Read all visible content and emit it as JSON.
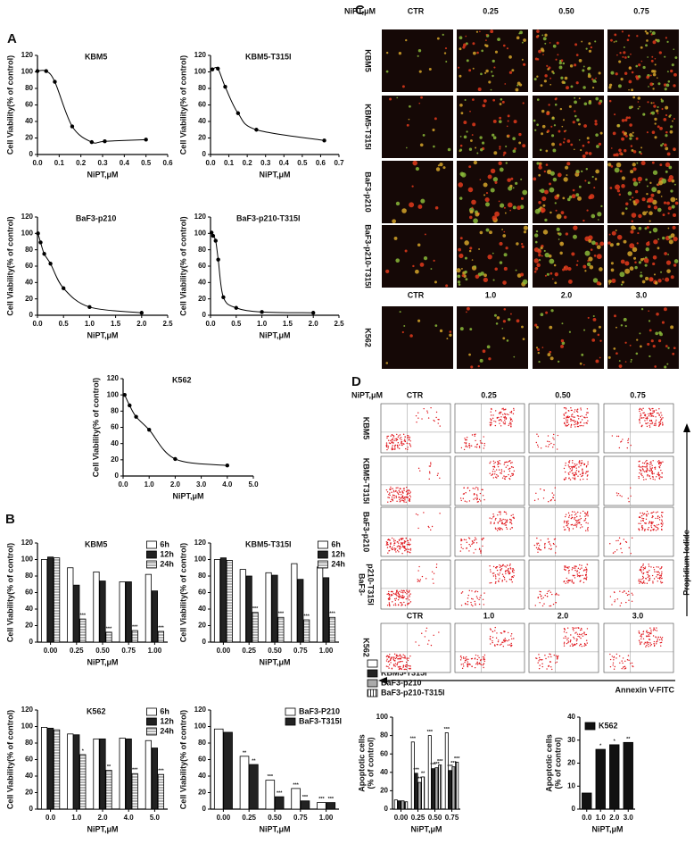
{
  "panel_labels": [
    "A",
    "B",
    "C",
    "D"
  ],
  "chart_data": [
    {
      "type": "scatter",
      "title": "KBM5",
      "x_label": "NiPT,μM",
      "y_label": "Cell Viability(% of control)",
      "color": "#000000",
      "fit_line": true,
      "x": [
        0.0,
        0.04,
        0.08,
        0.16,
        0.25,
        0.31,
        0.5
      ],
      "values": [
        101,
        101,
        88,
        34,
        15,
        16,
        18
      ],
      "xlim": [
        0,
        0.6
      ],
      "xticks": [
        {
          "value": 0,
          "label": "0.0"
        },
        {
          "value": 0.1,
          "label": "0.1"
        },
        {
          "value": 0.2,
          "label": "0.2"
        },
        {
          "value": 0.3,
          "label": "0.3"
        },
        {
          "value": 0.4,
          "label": "0.4"
        },
        {
          "value": 0.5,
          "label": "0.5"
        },
        {
          "value": 0.6,
          "label": "0.6"
        }
      ],
      "ylim": [
        0,
        120
      ],
      "yticks": [
        0,
        20,
        40,
        60,
        80,
        100,
        120
      ]
    },
    {
      "type": "scatter",
      "title": "KBM5-T315I",
      "x_label": "NiPT,μM",
      "y_label": "Cell Viability(% of control)",
      "color": "#000000",
      "fit_line": true,
      "x": [
        0.01,
        0.04,
        0.08,
        0.15,
        0.25,
        0.62
      ],
      "values": [
        103,
        104,
        82,
        50,
        30,
        17
      ],
      "xlim": [
        0,
        0.7
      ],
      "xticks": [
        {
          "value": 0,
          "label": "0.0"
        },
        {
          "value": 0.1,
          "label": "0.1"
        },
        {
          "value": 0.2,
          "label": "0.2"
        },
        {
          "value": 0.3,
          "label": "0.3"
        },
        {
          "value": 0.4,
          "label": "0.4"
        },
        {
          "value": 0.5,
          "label": "0.5"
        },
        {
          "value": 0.6,
          "label": "0.6"
        },
        {
          "value": 0.7,
          "label": "0.7"
        }
      ],
      "ylim": [
        0,
        120
      ],
      "yticks": [
        0,
        20,
        40,
        60,
        80,
        100,
        120
      ]
    },
    {
      "type": "scatter",
      "title": "BaF3-p210",
      "x_label": "NiPT,μM",
      "y_label": "Cell Viability(% of control)",
      "color": "#000000",
      "fit_line": true,
      "x": [
        0.01,
        0.06,
        0.13,
        0.25,
        0.5,
        1.0,
        2.0
      ],
      "values": [
        100,
        89,
        75,
        63,
        33,
        10,
        3
      ],
      "xlim": [
        0,
        2.5
      ],
      "xticks": [
        {
          "value": 0,
          "label": "0.0"
        },
        {
          "value": 0.5,
          "label": "0.5"
        },
        {
          "value": 1,
          "label": "1.0"
        },
        {
          "value": 1.5,
          "label": "1.5"
        },
        {
          "value": 2,
          "label": "2.0"
        },
        {
          "value": 2.5,
          "label": "2.5"
        }
      ],
      "ylim": [
        0,
        120
      ],
      "yticks": [
        0,
        20,
        40,
        60,
        80,
        100,
        120
      ]
    },
    {
      "type": "scatter",
      "title": "BaF3-p210-T315I",
      "x_label": "NiPT,μM",
      "y_label": "Cell Viability(% of control)",
      "color": "#000000",
      "fit_line": true,
      "x": [
        0.02,
        0.05,
        0.1,
        0.15,
        0.25,
        0.5,
        1.0,
        2.0
      ],
      "values": [
        101,
        97,
        91,
        68,
        22,
        9,
        4,
        3
      ],
      "xlim": [
        0,
        2.5
      ],
      "xticks": [
        {
          "value": 0,
          "label": "0.0"
        },
        {
          "value": 0.5,
          "label": "0.5"
        },
        {
          "value": 1,
          "label": "1.0"
        },
        {
          "value": 1.5,
          "label": "1.5"
        },
        {
          "value": 2,
          "label": "2.0"
        },
        {
          "value": 2.5,
          "label": "2.5"
        }
      ],
      "ylim": [
        0,
        120
      ],
      "yticks": [
        0,
        20,
        40,
        60,
        80,
        100,
        120
      ]
    },
    {
      "type": "scatter",
      "title": "K562",
      "x_label": "NiPT,μM",
      "y_label": "Cell Viability(% of control)",
      "color": "#000000",
      "fit_line": true,
      "x": [
        0.06,
        0.25,
        0.5,
        1.0,
        2.0,
        4.0
      ],
      "values": [
        100,
        87,
        73,
        57,
        21,
        13
      ],
      "xlim": [
        0,
        5
      ],
      "xticks": [
        {
          "value": 0,
          "label": "0.0"
        },
        {
          "value": 1,
          "label": "1.0"
        },
        {
          "value": 2,
          "label": "2.0"
        },
        {
          "value": 3,
          "label": "3.0"
        },
        {
          "value": 4,
          "label": "4.0"
        },
        {
          "value": 5,
          "label": "5.0"
        }
      ],
      "ylim": [
        0,
        120
      ],
      "yticks": [
        0,
        20,
        40,
        60,
        80,
        100,
        120
      ]
    },
    {
      "type": "bar",
      "title": "KBM5",
      "x_label": "NiPT,μM",
      "y_label": "Cell Viability(% of control)",
      "legend": "top-right",
      "categories": [
        "0.00",
        "0.25",
        "0.50",
        "0.75",
        "1.00"
      ],
      "series": [
        {
          "name": "6h",
          "color": "#ffffff",
          "values": [
            100,
            90,
            85,
            73,
            82
          ]
        },
        {
          "name": "12h",
          "color": "#222222",
          "values": [
            103,
            69,
            74,
            73,
            62
          ]
        },
        {
          "name": "24h",
          "color": "#b0b0b0",
          "hatch": "horizontal",
          "values": [
            102,
            28,
            12,
            14,
            13
          ],
          "significance": [
            null,
            "***",
            "***",
            "***",
            "***"
          ]
        }
      ],
      "ylim": [
        0,
        120
      ],
      "yticks": [
        0,
        20,
        40,
        60,
        80,
        100,
        120
      ]
    },
    {
      "type": "bar",
      "title": "KBM5-T315I",
      "x_label": "NiPT,μM",
      "y_label": "Cell Viability(% of control)",
      "legend": "top-right",
      "categories": [
        "0.00",
        "0.25",
        "0.50",
        "0.75",
        "1.00"
      ],
      "series": [
        {
          "name": "6h",
          "color": "#ffffff",
          "values": [
            100,
            88,
            84,
            95,
            91
          ]
        },
        {
          "name": "12h",
          "color": "#222222",
          "values": [
            102,
            80,
            81,
            76,
            78
          ]
        },
        {
          "name": "24h",
          "color": "#b0b0b0",
          "hatch": "horizontal",
          "values": [
            99,
            36,
            30,
            27,
            30
          ],
          "significance": [
            null,
            "***",
            "***",
            "***",
            "***"
          ]
        }
      ],
      "ylim": [
        0,
        120
      ],
      "yticks": [
        0,
        20,
        40,
        60,
        80,
        100,
        120
      ]
    },
    {
      "type": "bar",
      "title": "K562",
      "x_label": "NiPT,μM",
      "y_label": "Cell Viability(% of control)",
      "legend": "top-right",
      "categories": [
        "0.0",
        "1.0",
        "2.0",
        "4.0",
        "5.0"
      ],
      "series": [
        {
          "name": "6h",
          "color": "#ffffff",
          "values": [
            99,
            91,
            85,
            86,
            83
          ]
        },
        {
          "name": "12h",
          "color": "#222222",
          "values": [
            98,
            90,
            85,
            85,
            74
          ]
        },
        {
          "name": "24h",
          "color": "#b0b0b0",
          "hatch": "horizontal",
          "values": [
            96,
            66,
            47,
            43,
            42
          ],
          "significance": [
            null,
            "*",
            "**",
            "***",
            "***"
          ]
        }
      ],
      "ylim": [
        0,
        120
      ],
      "yticks": [
        0,
        20,
        40,
        60,
        80,
        100,
        120
      ]
    },
    {
      "type": "bar",
      "x_label": "NiPT,μM",
      "y_label": "Cell Viability(% of control)",
      "legend": "top-right",
      "categories": [
        "0.00",
        "0.25",
        "0.50",
        "0.75",
        "1.00"
      ],
      "series": [
        {
          "name": "BaF3-P210",
          "color": "#ffffff",
          "values": [
            97,
            64,
            35,
            25,
            8
          ],
          "significance": [
            null,
            "**",
            "***",
            "***",
            "***"
          ]
        },
        {
          "name": "BaF3-T315I",
          "color": "#222222",
          "values": [
            93,
            54,
            15,
            10,
            8
          ],
          "significance": [
            null,
            "**",
            "***",
            "***",
            "***"
          ]
        }
      ],
      "ylim": [
        0,
        120
      ],
      "yticks": [
        0,
        20,
        40,
        60,
        80,
        100,
        120
      ]
    },
    {
      "type": "bar",
      "x_label": "NiPT,μM",
      "y_label": [
        "Apoptotic cells",
        "(% of control)"
      ],
      "legend": "above",
      "categories": [
        "0.00",
        "0.25",
        "0.50",
        "0.75"
      ],
      "series": [
        {
          "name": "KBM5",
          "color": "#ffffff",
          "values": [
            10,
            73,
            80,
            83
          ],
          "significance": [
            null,
            "***",
            "***",
            "***"
          ]
        },
        {
          "name": "KBM5-T315I",
          "color": "#222222",
          "values": [
            9,
            39,
            44,
            42
          ],
          "significance": [
            null,
            "***",
            "***",
            "***"
          ]
        },
        {
          "name": "BaF3-p210",
          "color": "#aaaaaa",
          "values": [
            9,
            29,
            45,
            46
          ],
          "significance": [
            null,
            "**",
            "***",
            "***"
          ]
        },
        {
          "name": "BaF3-p210-T315I",
          "color": "#ffffff",
          "hatch": "vertical",
          "values": [
            8,
            35,
            48,
            51
          ],
          "significance": [
            null,
            "**",
            "***",
            "***"
          ]
        }
      ],
      "ylim": [
        0,
        100
      ],
      "yticks": [
        0,
        20,
        40,
        60,
        80,
        100
      ]
    },
    {
      "type": "bar",
      "x_label": "NiPT,μM",
      "y_label": [
        "Apoptotic cells",
        "(% of control)"
      ],
      "legend": "top-left",
      "categories": [
        "0.0",
        "1.0",
        "2.0",
        "3.0"
      ],
      "series": [
        {
          "name": "K562",
          "color": "#111111",
          "values": [
            7,
            26,
            28,
            29
          ],
          "significance": [
            null,
            "*",
            "*",
            "**"
          ]
        }
      ],
      "ylim": [
        0,
        40
      ],
      "yticks": [
        0,
        10,
        20,
        30,
        40
      ]
    }
  ],
  "panel_c": {
    "header": "NiPT,μM",
    "columns": [
      "CTR",
      "0.25",
      "0.50",
      "0.75"
    ],
    "rows": [
      "KBM5",
      "KBM5-T315I",
      "BaF3-p210",
      "BaF3-p210-T315I"
    ],
    "columns_2": [
      "CTR",
      "1.0",
      "2.0",
      "3.0"
    ],
    "rows_2": [
      "K562"
    ]
  },
  "panel_d": {
    "header": "NiPT,μM",
    "columns": [
      "CTR",
      "0.25",
      "0.50",
      "0.75"
    ],
    "rows": [
      [
        "KBM5"
      ],
      [
        "KBM5-T315I"
      ],
      [
        "BaF3-p210"
      ],
      [
        "BaF3-",
        "p210-T315I"
      ]
    ],
    "columns_2": [
      "CTR",
      "1.0",
      "2.0",
      "3.0"
    ],
    "rows_2": [
      "K562"
    ],
    "y_axis_label": "Propidium Iodide",
    "x_axis_label": "Annexin V-FITC"
  }
}
